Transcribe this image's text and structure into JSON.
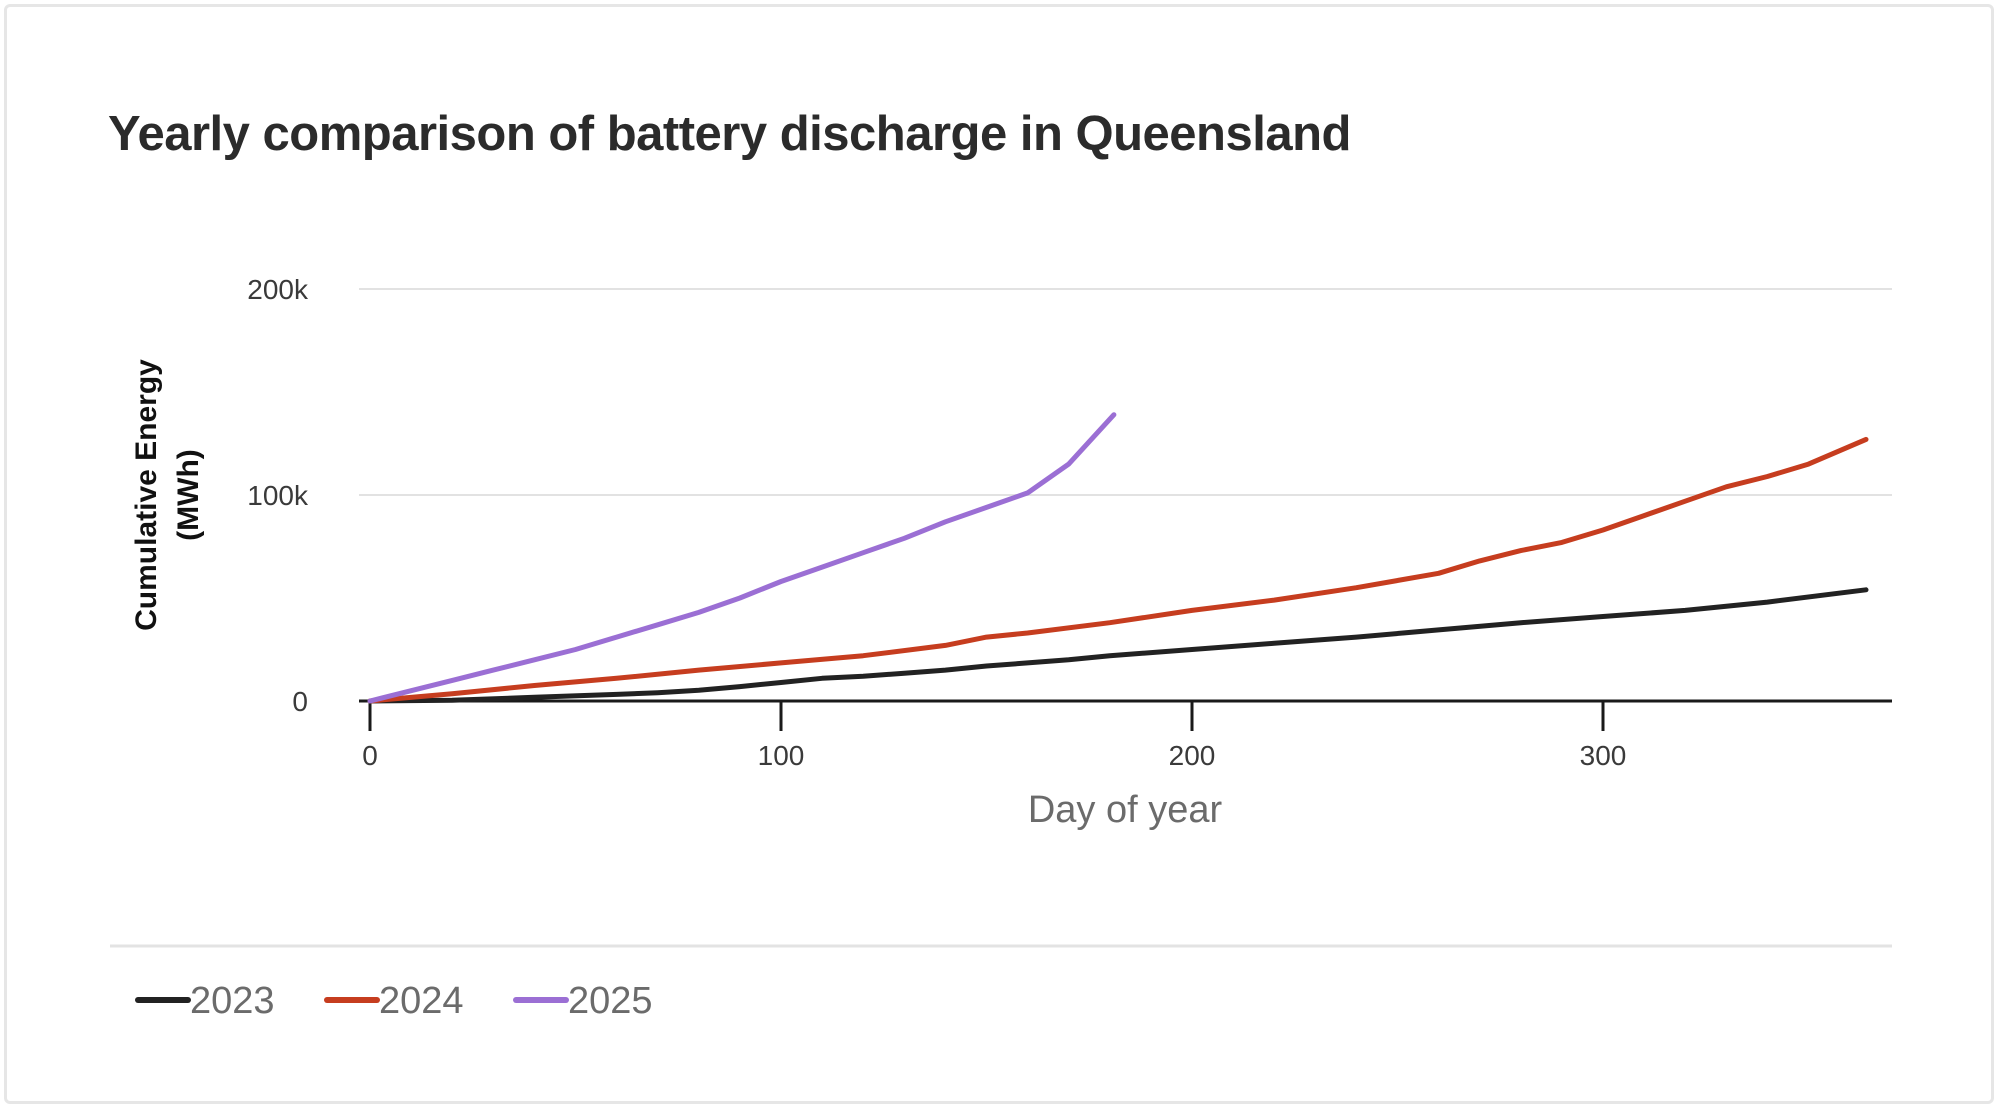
{
  "chart_data": {
    "type": "line",
    "title": "Yearly comparison of battery discharge in Queensland",
    "xlabel": "Day of year",
    "ylabel_lines": [
      "Cumulative Energy",
      "(MWh)"
    ],
    "xlim": [
      0,
      370
    ],
    "ylim": [
      0,
      200000
    ],
    "x_ticks": [
      0,
      100,
      200,
      300
    ],
    "x_tick_labels": [
      "0",
      "100",
      "200",
      "300"
    ],
    "y_ticks": [
      0,
      100000,
      200000
    ],
    "y_tick_labels": [
      "0",
      "100k",
      "200k"
    ],
    "grid": true,
    "legend_position": "bottom-left",
    "series": [
      {
        "name": "2023",
        "color": "#222222",
        "points": [
          [
            0,
            0
          ],
          [
            20,
            400
          ],
          [
            40,
            1800
          ],
          [
            60,
            3200
          ],
          [
            70,
            4000
          ],
          [
            80,
            5200
          ],
          [
            90,
            7000
          ],
          [
            100,
            9000
          ],
          [
            110,
            11000
          ],
          [
            120,
            12000
          ],
          [
            130,
            13500
          ],
          [
            140,
            15000
          ],
          [
            150,
            17000
          ],
          [
            160,
            18500
          ],
          [
            170,
            20000
          ],
          [
            180,
            22000
          ],
          [
            200,
            25000
          ],
          [
            220,
            28000
          ],
          [
            240,
            31000
          ],
          [
            260,
            34500
          ],
          [
            280,
            38000
          ],
          [
            300,
            41000
          ],
          [
            320,
            44000
          ],
          [
            340,
            48000
          ],
          [
            364,
            54000
          ]
        ]
      },
      {
        "name": "2024",
        "color": "#c63d1f",
        "points": [
          [
            0,
            0
          ],
          [
            20,
            3500
          ],
          [
            40,
            7500
          ],
          [
            60,
            11000
          ],
          [
            80,
            15000
          ],
          [
            100,
            18500
          ],
          [
            120,
            22000
          ],
          [
            140,
            27000
          ],
          [
            150,
            31000
          ],
          [
            160,
            33000
          ],
          [
            180,
            38000
          ],
          [
            200,
            44000
          ],
          [
            220,
            49000
          ],
          [
            240,
            55000
          ],
          [
            260,
            62000
          ],
          [
            270,
            68000
          ],
          [
            280,
            73000
          ],
          [
            290,
            77000
          ],
          [
            300,
            83000
          ],
          [
            310,
            90000
          ],
          [
            320,
            97000
          ],
          [
            330,
            104000
          ],
          [
            340,
            109000
          ],
          [
            350,
            115000
          ],
          [
            364,
            127000
          ]
        ]
      },
      {
        "name": "2025",
        "color": "#9b6fd4",
        "points": [
          [
            0,
            0
          ],
          [
            10,
            5000
          ],
          [
            20,
            10000
          ],
          [
            30,
            15000
          ],
          [
            40,
            20000
          ],
          [
            50,
            25000
          ],
          [
            60,
            31000
          ],
          [
            70,
            37000
          ],
          [
            80,
            43000
          ],
          [
            90,
            50000
          ],
          [
            100,
            58000
          ],
          [
            110,
            65000
          ],
          [
            120,
            72000
          ],
          [
            130,
            79000
          ],
          [
            140,
            87000
          ],
          [
            150,
            94000
          ],
          [
            160,
            101000
          ],
          [
            170,
            115000
          ],
          [
            181,
            139000
          ]
        ]
      }
    ]
  }
}
